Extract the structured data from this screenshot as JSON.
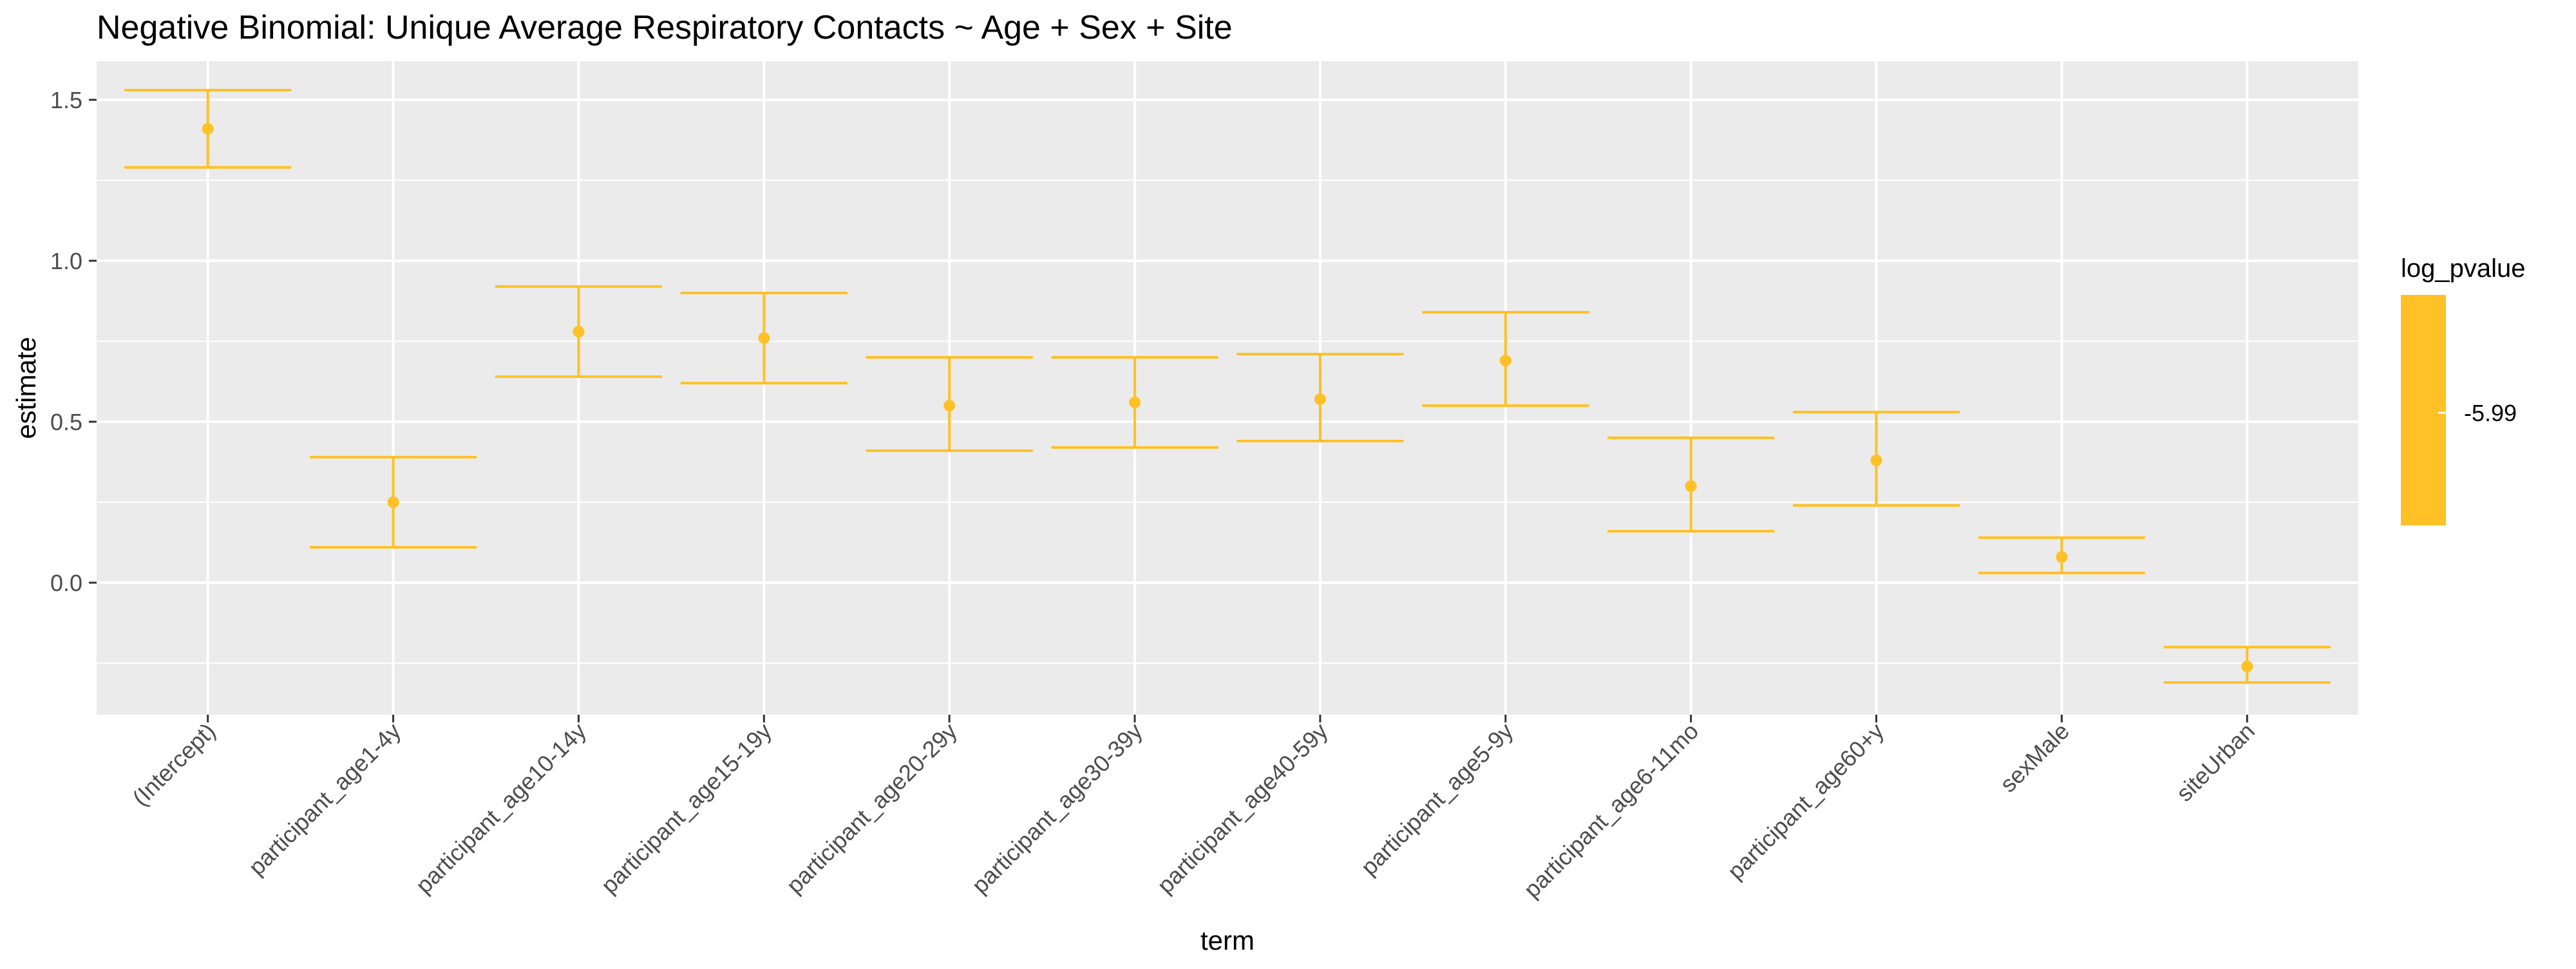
{
  "chart_data": {
    "type": "errorbar",
    "title": "Negative Binomial: Unique Average Respiratory Contacts ~ Age + Sex + Site",
    "xlabel": "term",
    "ylabel": "estimate",
    "ylim": [
      -0.41,
      1.62
    ],
    "yticks": [
      0.0,
      0.5,
      1.0,
      1.5
    ],
    "ytick_labels": [
      "0.0",
      "0.5",
      "1.0",
      "1.5"
    ],
    "grid": true,
    "legend": {
      "title": "log_pvalue",
      "position": "right",
      "type": "colorbar",
      "tick_label": "-5.99"
    },
    "color": "#FFC125",
    "panel_background": "#EBEBEB",
    "points": [
      {
        "term": "(Intercept)",
        "estimate": 1.41,
        "low": 1.29,
        "high": 1.53
      },
      {
        "term": "participant_age1-4y",
        "estimate": 0.25,
        "low": 0.11,
        "high": 0.39
      },
      {
        "term": "participant_age10-14y",
        "estimate": 0.78,
        "low": 0.64,
        "high": 0.92
      },
      {
        "term": "participant_age15-19y",
        "estimate": 0.76,
        "low": 0.62,
        "high": 0.9
      },
      {
        "term": "participant_age20-29y",
        "estimate": 0.55,
        "low": 0.41,
        "high": 0.7
      },
      {
        "term": "participant_age30-39y",
        "estimate": 0.56,
        "low": 0.42,
        "high": 0.7
      },
      {
        "term": "participant_age40-59y",
        "estimate": 0.57,
        "low": 0.44,
        "high": 0.71
      },
      {
        "term": "participant_age5-9y",
        "estimate": 0.69,
        "low": 0.55,
        "high": 0.84
      },
      {
        "term": "participant_age6-11mo",
        "estimate": 0.3,
        "low": 0.16,
        "high": 0.45
      },
      {
        "term": "participant_age60+y",
        "estimate": 0.38,
        "low": 0.24,
        "high": 0.53
      },
      {
        "term": "sexMale",
        "estimate": 0.08,
        "low": 0.03,
        "high": 0.14
      },
      {
        "term": "siteUrban",
        "estimate": -0.26,
        "low": -0.31,
        "high": -0.2
      }
    ]
  }
}
